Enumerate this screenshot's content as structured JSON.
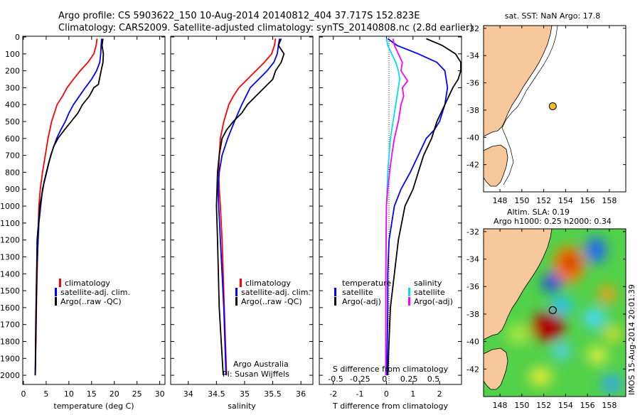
{
  "header": {
    "line1": "Argo profile: CS 5903622_150 10-Aug-2014 20140812_404 37.717S 152.823E",
    "line2": "Climatology: CARS2009. Satellite-adjusted climatology: synTS_20140808.nc (2.8d earlier)"
  },
  "colors": {
    "climatology": "#ff0000",
    "satellite": "#0000ff",
    "argo": "#000000",
    "sat_salinity": "#00e0f0",
    "argo_salinity_diff": "#ff00ff",
    "land": "#f7c89b",
    "marker": "#f0c020"
  },
  "chart_data": [
    {
      "type": "line",
      "id": "temperature",
      "xlabel": "temperature (deg C)",
      "xlim": [
        0,
        31
      ],
      "ylim": [
        2050,
        0
      ],
      "xticks": [
        "0",
        "5",
        "10",
        "15",
        "20",
        "25",
        "30"
      ],
      "yticks": [
        "0",
        "100",
        "200",
        "300",
        "400",
        "500",
        "600",
        "700",
        "800",
        "900",
        "1000",
        "1100",
        "1200",
        "1300",
        "1400",
        "1500",
        "1600",
        "1700",
        "1800",
        "1900",
        "2000"
      ],
      "legend": [
        "climatology",
        "satellite-adj. clim.",
        "Argo(..raw -QC)"
      ],
      "legend_position": "lower-center",
      "series": [
        {
          "name": "climatology",
          "x": [
            16.2,
            16,
            15.5,
            14.2,
            12.5,
            11,
            9.6,
            8.6,
            7.4,
            6.2,
            5.4,
            4.8,
            4.2,
            3.7,
            3.4,
            3.2,
            3,
            2.85,
            2.75,
            2.6
          ],
          "y": [
            10,
            50,
            100,
            150,
            200,
            250,
            300,
            350,
            400,
            500,
            600,
            700,
            800,
            900,
            1000,
            1200,
            1400,
            1600,
            1800,
            2000
          ]
        },
        {
          "name": "satellite-adj. clim.",
          "x": [
            17.2,
            17.1,
            17,
            16.8,
            16.1,
            15,
            13.6,
            12.3,
            11,
            10,
            9.2,
            8.2,
            7.3,
            6,
            5.1,
            4.2,
            3.4,
            2.9,
            2.7,
            2.6
          ],
          "y": [
            10,
            50,
            100,
            150,
            200,
            250,
            300,
            350,
            400,
            450,
            500,
            550,
            600,
            700,
            800,
            900,
            1100,
            1400,
            1700,
            2000
          ]
        },
        {
          "name": "Argo(..raw -QC)",
          "x": [
            17.5,
            17.3,
            17.6,
            17.5,
            17.1,
            16.8,
            16.5,
            15.5,
            14.5,
            13,
            12,
            10.5,
            9,
            7.6,
            6.6,
            5.5,
            4.6,
            3.6,
            3,
            2.8,
            2.6
          ],
          "y": [
            10,
            50,
            100,
            150,
            200,
            240,
            280,
            300,
            350,
            400,
            450,
            500,
            550,
            600,
            650,
            750,
            850,
            1000,
            1200,
            1600,
            2000
          ]
        }
      ]
    },
    {
      "type": "line",
      "id": "salinity",
      "xlabel": "salinity",
      "xlim": [
        33.7,
        36.2
      ],
      "ylim": [
        2050,
        0
      ],
      "xticks": [
        "34",
        "34.5",
        "35",
        "35.5",
        "36"
      ],
      "legend": [
        "climatology",
        "satellite-adj. clim.",
        "Argo(..raw -QC)"
      ],
      "legend_position": "lower-right",
      "annotation": [
        "Argo Australia",
        "PI: Susan Wijffels"
      ],
      "series": [
        {
          "name": "climatology",
          "x": [
            35.55,
            35.53,
            35.48,
            35.35,
            35.2,
            35.05,
            34.9,
            34.8,
            34.72,
            34.63,
            34.57,
            34.55,
            34.54,
            34.55,
            34.57,
            34.6,
            34.64,
            34.68
          ],
          "y": [
            10,
            50,
            100,
            150,
            200,
            250,
            300,
            350,
            400,
            500,
            600,
            700,
            800,
            900,
            1000,
            1200,
            1600,
            2000
          ]
        },
        {
          "name": "satellite-adj. clim.",
          "x": [
            35.62,
            35.6,
            35.58,
            35.52,
            35.4,
            35.25,
            35.1,
            34.95,
            34.82,
            34.7,
            34.6,
            34.55,
            34.53,
            34.54,
            34.57,
            34.63,
            34.67
          ],
          "y": [
            10,
            50,
            100,
            150,
            200,
            250,
            300,
            400,
            500,
            600,
            700,
            800,
            900,
            1000,
            1200,
            1600,
            2000
          ]
        },
        {
          "name": "Argo(..raw -QC)",
          "x": [
            35.65,
            35.6,
            35.7,
            35.65,
            35.55,
            35.5,
            35.35,
            35.2,
            35.05,
            34.95,
            34.8,
            34.68,
            34.6,
            34.55,
            34.52,
            34.5,
            34.52,
            34.55,
            34.62
          ],
          "y": [
            10,
            50,
            100,
            150,
            200,
            250,
            300,
            350,
            400,
            450,
            500,
            550,
            600,
            700,
            800,
            1000,
            1200,
            1600,
            2000
          ]
        }
      ]
    },
    {
      "type": "line",
      "id": "difference",
      "xlabel": "T difference from climatology",
      "xlabel_top": "S difference from climatology",
      "xlim": [
        -2.5,
        2.8
      ],
      "ylim": [
        2050,
        0
      ],
      "xticks": [
        "-2",
        "-1",
        "0",
        "1",
        "2"
      ],
      "xticks_top": [
        "-0.5",
        "-0.25",
        "0",
        "0.25",
        "0.5"
      ],
      "legend": [
        "temperature",
        "satellite",
        "Argo(-adj)",
        "salinity",
        "satellite",
        "Argo(-adj)"
      ],
      "legend_position": "lower-center",
      "series": [
        {
          "name": "satellite",
          "x": [
            0.05,
            0.4,
            1.2,
            1.9,
            2.2,
            2.3,
            2.2,
            2.0,
            1.8,
            1.5,
            1.2,
            0.9,
            0.55,
            0.3,
            0.1,
            0.05,
            0.05,
            0.02
          ],
          "y": [
            10,
            50,
            100,
            150,
            200,
            300,
            400,
            500,
            550,
            600,
            700,
            800,
            900,
            1000,
            1200,
            1400,
            1600,
            2000
          ]
        },
        {
          "name": "Argo(-adj)",
          "x": [
            1.5,
            2.1,
            2.6,
            2.8,
            2.8,
            2.7,
            2.5,
            2.2,
            1.9,
            1.7,
            1.4,
            1.2,
            1.0,
            0.7,
            0.45,
            0.3,
            0.15,
            0.1,
            0.05
          ],
          "y": [
            10,
            50,
            100,
            150,
            200,
            250,
            300,
            400,
            500,
            600,
            700,
            800,
            900,
            1000,
            1200,
            1400,
            1600,
            1800,
            2000
          ]
        },
        {
          "name": "satellite",
          "x": [
            0,
            0.05,
            0.2,
            0.35,
            0.45,
            0.5,
            0.45,
            0.35,
            0.25,
            0.15,
            0.05,
            0,
            -0.02,
            -0.03,
            -0.03
          ],
          "y": [
            10,
            50,
            100,
            150,
            200,
            250,
            300,
            400,
            500,
            600,
            800,
            1000,
            1400,
            1800,
            2000
          ]
        },
        {
          "name": "Argo(-adj)",
          "x": [
            0.25,
            0.3,
            0.45,
            0.6,
            0.55,
            0.8,
            0.6,
            0.65,
            0.55,
            0.45,
            0.3,
            0.2,
            0.12,
            0.05,
            0,
            -0.02,
            -0.02
          ],
          "y": [
            10,
            50,
            100,
            150,
            200,
            260,
            300,
            350,
            400,
            500,
            600,
            700,
            800,
            900,
            1000,
            1400,
            2000
          ]
        }
      ]
    }
  ],
  "map_sst": {
    "title": "sat. SST: NaN Argo: 17.8",
    "xticks": [
      "148",
      "150",
      "152",
      "154",
      "156",
      "158"
    ],
    "yticks": [
      "-32",
      "-34",
      "-36",
      "-38",
      "-40",
      "-42"
    ],
    "xlim": [
      146.5,
      159.5
    ],
    "ylim": [
      -44,
      -31.8
    ],
    "argo_position": {
      "lon": 152.823,
      "lat": -37.717
    }
  },
  "map_sla": {
    "title1": "Altim. SLA: 0.19",
    "title2": "Argo h1000: 0.25 h2000: 0.34",
    "xticks": [
      "148",
      "150",
      "152",
      "154",
      "156",
      "158"
    ],
    "yticks": [
      "-32",
      "-34",
      "-36",
      "-38",
      "-40",
      "-42"
    ],
    "xlim": [
      146.5,
      159.5
    ],
    "ylim": [
      -44,
      -31.8
    ],
    "argo_position": {
      "lon": 152.823,
      "lat": -37.717
    }
  },
  "footer": {
    "stamp": "IMOS 15-Aug-2014 20:01:39"
  }
}
